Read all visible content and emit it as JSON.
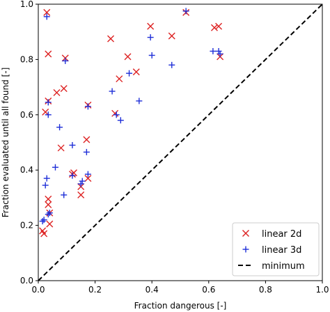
{
  "chart_data": {
    "type": "scatter",
    "xlabel": "Fraction dangerous [-]",
    "ylabel": "Fraction evaluated until all found [-]",
    "xlim": [
      0,
      1
    ],
    "ylim": [
      0,
      1
    ],
    "xticks": [
      "0.0",
      "0.2",
      "0.4",
      "0.6",
      "0.8",
      "1.0"
    ],
    "yticks": [
      "0.0",
      "0.2",
      "0.4",
      "0.6",
      "0.8",
      "1.0"
    ],
    "grid": false,
    "legend_position": "bottom-right",
    "series": [
      {
        "name": "linear 2d",
        "marker": "x",
        "color": "#dd2222",
        "points": [
          [
            0.03,
            0.97
          ],
          [
            0.035,
            0.82
          ],
          [
            0.095,
            0.805
          ],
          [
            0.09,
            0.695
          ],
          [
            0.065,
            0.68
          ],
          [
            0.025,
            0.61
          ],
          [
            0.035,
            0.65
          ],
          [
            0.175,
            0.635
          ],
          [
            0.08,
            0.48
          ],
          [
            0.17,
            0.51
          ],
          [
            0.12,
            0.385
          ],
          [
            0.125,
            0.39
          ],
          [
            0.175,
            0.37
          ],
          [
            0.15,
            0.34
          ],
          [
            0.15,
            0.31
          ],
          [
            0.035,
            0.295
          ],
          [
            0.035,
            0.275
          ],
          [
            0.04,
            0.245
          ],
          [
            0.04,
            0.205
          ],
          [
            0.015,
            0.18
          ],
          [
            0.02,
            0.17
          ],
          [
            0.255,
            0.875
          ],
          [
            0.315,
            0.81
          ],
          [
            0.285,
            0.73
          ],
          [
            0.345,
            0.755
          ],
          [
            0.27,
            0.605
          ],
          [
            0.395,
            0.92
          ],
          [
            0.47,
            0.885
          ],
          [
            0.52,
            0.97
          ],
          [
            0.62,
            0.915
          ],
          [
            0.635,
            0.92
          ],
          [
            0.64,
            0.81
          ]
        ]
      },
      {
        "name": "linear 3d",
        "marker": "+",
        "color": "#1f2fd8",
        "points": [
          [
            0.03,
            0.955
          ],
          [
            0.095,
            0.795
          ],
          [
            0.035,
            0.645
          ],
          [
            0.035,
            0.6
          ],
          [
            0.175,
            0.63
          ],
          [
            0.075,
            0.555
          ],
          [
            0.17,
            0.465
          ],
          [
            0.12,
            0.49
          ],
          [
            0.06,
            0.41
          ],
          [
            0.03,
            0.37
          ],
          [
            0.025,
            0.345
          ],
          [
            0.12,
            0.38
          ],
          [
            0.175,
            0.385
          ],
          [
            0.155,
            0.36
          ],
          [
            0.15,
            0.35
          ],
          [
            0.09,
            0.31
          ],
          [
            0.04,
            0.245
          ],
          [
            0.035,
            0.24
          ],
          [
            0.015,
            0.215
          ],
          [
            0.02,
            0.22
          ],
          [
            0.26,
            0.685
          ],
          [
            0.275,
            0.6
          ],
          [
            0.29,
            0.58
          ],
          [
            0.32,
            0.75
          ],
          [
            0.355,
            0.65
          ],
          [
            0.395,
            0.88
          ],
          [
            0.4,
            0.815
          ],
          [
            0.47,
            0.78
          ],
          [
            0.52,
            0.975
          ],
          [
            0.615,
            0.83
          ],
          [
            0.635,
            0.83
          ],
          [
            0.64,
            0.82
          ]
        ]
      }
    ],
    "reference_line": {
      "name": "minimum",
      "style": "dashed",
      "color": "#000000",
      "points": [
        [
          0,
          0
        ],
        [
          1,
          1
        ]
      ]
    }
  }
}
